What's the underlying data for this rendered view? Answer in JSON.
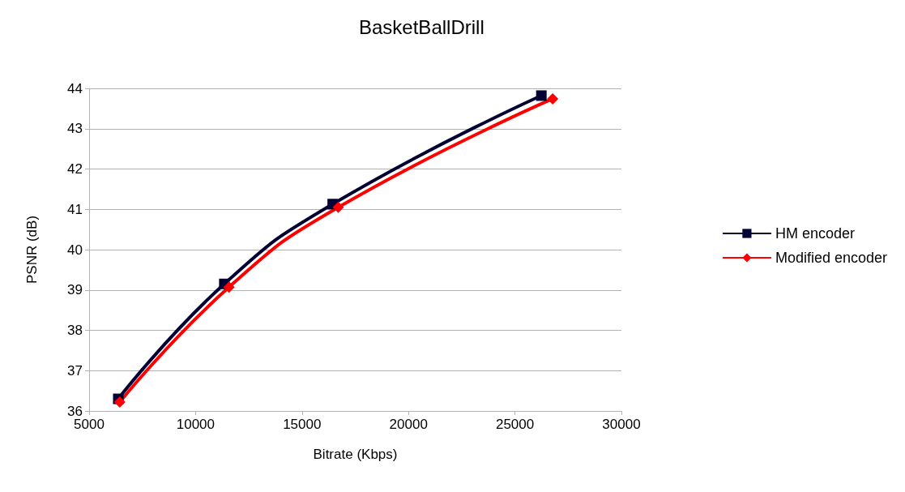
{
  "chart_data": {
    "type": "line",
    "title": "BasketBallDrill",
    "xlabel": "Bitrate (Kbps)",
    "ylabel": "PSNR (dB)",
    "xlim": [
      5000,
      30000
    ],
    "xticks": [
      5000,
      10000,
      15000,
      20000,
      25000,
      30000
    ],
    "ylim": [
      36,
      44
    ],
    "yticks": [
      36,
      37,
      38,
      39,
      40,
      41,
      42,
      43,
      44
    ],
    "grid": "y",
    "legend": "right",
    "series": [
      {
        "name": "HM encoder",
        "color": "#000033",
        "marker": "square",
        "x": [
          6370,
          11350,
          16440,
          26240
        ],
        "values": [
          36.3,
          39.15,
          41.13,
          43.82
        ]
      },
      {
        "name": "Modified encoder",
        "color": "#ff0000",
        "marker": "diamond",
        "x": [
          6440,
          11570,
          16700,
          26770
        ],
        "values": [
          36.22,
          39.07,
          41.05,
          43.74
        ]
      }
    ]
  }
}
